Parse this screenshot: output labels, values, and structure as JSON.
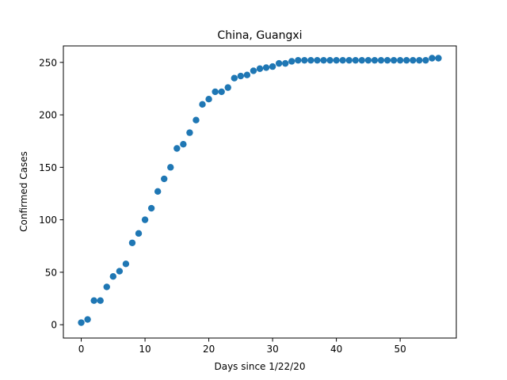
{
  "chart_data": {
    "type": "scatter",
    "title": "China, Guangxi",
    "xlabel": "Days since 1/22/20",
    "ylabel": "Confirmed Cases",
    "xlim": [
      -2.8,
      58.8
    ],
    "ylim": [
      -12.7,
      265.7
    ],
    "xticks": [
      0,
      10,
      20,
      30,
      40,
      50
    ],
    "yticks": [
      0,
      50,
      100,
      150,
      200,
      250
    ],
    "grid": false,
    "marker_color": "#1f77b4",
    "x": [
      0,
      1,
      2,
      3,
      4,
      5,
      6,
      7,
      8,
      9,
      10,
      11,
      12,
      13,
      14,
      15,
      16,
      17,
      18,
      19,
      20,
      21,
      22,
      23,
      24,
      25,
      26,
      27,
      28,
      29,
      30,
      31,
      32,
      33,
      34,
      35,
      36,
      37,
      38,
      39,
      40,
      41,
      42,
      43,
      44,
      45,
      46,
      47,
      48,
      49,
      50,
      51,
      52,
      53,
      54,
      55,
      56
    ],
    "y": [
      2,
      5,
      23,
      23,
      36,
      46,
      51,
      58,
      78,
      87,
      100,
      111,
      127,
      139,
      150,
      168,
      172,
      183,
      195,
      210,
      215,
      222,
      222,
      226,
      235,
      237,
      238,
      242,
      244,
      245,
      246,
      249,
      249,
      251,
      252,
      252,
      252,
      252,
      252,
      252,
      252,
      252,
      252,
      252,
      252,
      252,
      252,
      252,
      252,
      252,
      252,
      252,
      252,
      252,
      252,
      254,
      254
    ]
  }
}
